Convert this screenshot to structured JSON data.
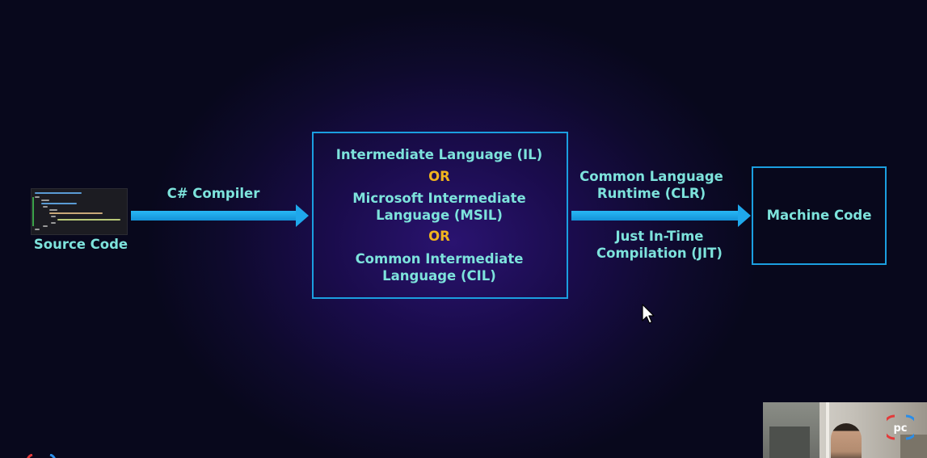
{
  "diagram": {
    "source": {
      "label": "Source Code",
      "thumbnail_icon": "code-editor-thumbnail"
    },
    "step1": {
      "label": "C# Compiler"
    },
    "intermediate": {
      "line1": "Intermediate Language (IL)",
      "or1": "OR",
      "line2a": "Microsoft Intermediate",
      "line2b": "Language (MSIL)",
      "or2": "OR",
      "line3a": "Common Intermediate",
      "line3b": "Language (CIL)"
    },
    "step2": {
      "top_line1": "Common Language",
      "top_line2": "Runtime (CLR)",
      "bottom_line1": "Just In-Time",
      "bottom_line2": "Compilation (JIT)"
    },
    "target": {
      "label": "Machine Code"
    }
  },
  "overlay": {
    "cursor_icon": "mouse-pointer-icon",
    "webcam_icon": "webcam-feed",
    "brand_logo_icon": "pc-logo-icon"
  },
  "colors": {
    "text": "#7de3dc",
    "or_text": "#f0b41e",
    "box_border": "#1b9fe0",
    "arrow": "#1fa8ec",
    "background_center": "#2a1370",
    "background_edge": "#08081c"
  }
}
